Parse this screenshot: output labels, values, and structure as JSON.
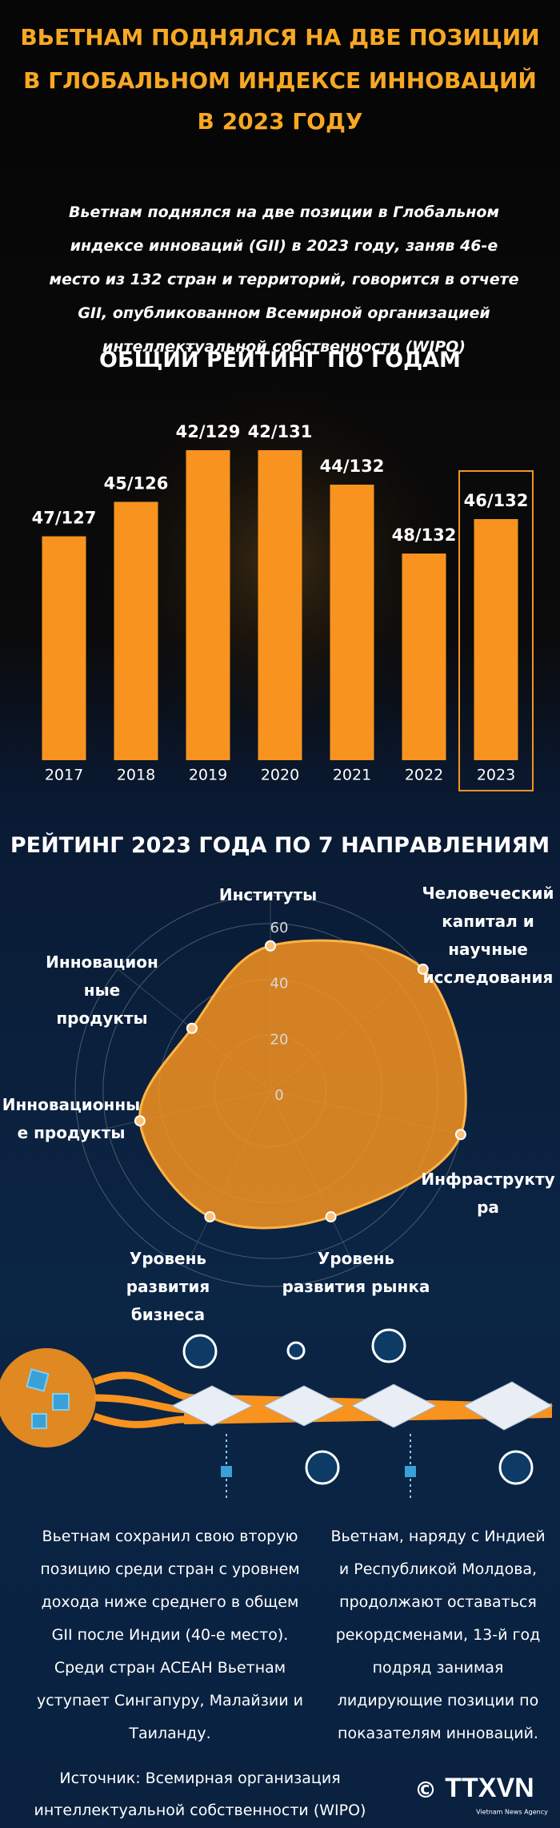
{
  "header": {
    "title_lines": [
      "ВЬЕТНАМ ПОДНЯЛСЯ НА ДВЕ ПОЗИЦИИ",
      "В ГЛОБАЛЬНОМ ИНДЕКСЕ ИННОВАЦИЙ",
      "В 2023 ГОДУ"
    ],
    "intro": "Вьетнам поднялся на две позиции в Глобальном индексе инноваций (GII) в 2023 году, заняв 46-е место из 132 стран и территорий, говорится в отчете GII, опубликованном Всемирной организацией интеллектуальной собственности (WIPO)"
  },
  "chart_data": [
    {
      "type": "bar",
      "title": "ОБЩИЙ РЕЙТИНГ ПО ГОДАМ",
      "categories": [
        "2017",
        "2018",
        "2019",
        "2020",
        "2021",
        "2022",
        "2023"
      ],
      "values": [
        47,
        45,
        42,
        42,
        44,
        48,
        46
      ],
      "value_labels": [
        "47/127",
        "45/126",
        "42/129",
        "42/131",
        "44/132",
        "48/132",
        "46/132"
      ],
      "color": "#f7931e",
      "ylim": [
        60,
        40
      ]
    },
    {
      "type": "radar",
      "title": "РЕЙТИНГ 2023 ГОДА ПО 7 НАПРАВЛЕНИЯМ",
      "categories": [
        "Институты",
        "Человеческий капитал и научные исследования",
        "Инфраструктура",
        "Уровень развития рынка",
        "Уровень развития бизнеса",
        "Инновационные продукты",
        "Инновационные продукты"
      ],
      "values": [
        52,
        70,
        70,
        50,
        50,
        48,
        36
      ],
      "color": "#f7931e",
      "ylim": [
        0,
        70
      ],
      "yticks": [
        0,
        20,
        40,
        60
      ]
    }
  ],
  "paragraphs": [
    "Вьетнам сохранил свою вторую позицию среди стран с уровнем дохода ниже среднего в общем GII после Индии (40-е место). Среди стран АСЕАН Вьетнам уступает Сингапуру, Малайзии и Таиланду.",
    "Вьетнам, наряду с Индией и Республикой Молдова, продолжают оставаться рекордсменами, 13-й год подряд занимая лидирующие позиции по показателям инноваций."
  ],
  "source": "Источник: Всемирная организация интеллектуальной собственности (WIPO)",
  "logo": {
    "copyright": "©",
    "name": "TTXVN",
    "tagline": "Vietnam News Agency"
  }
}
